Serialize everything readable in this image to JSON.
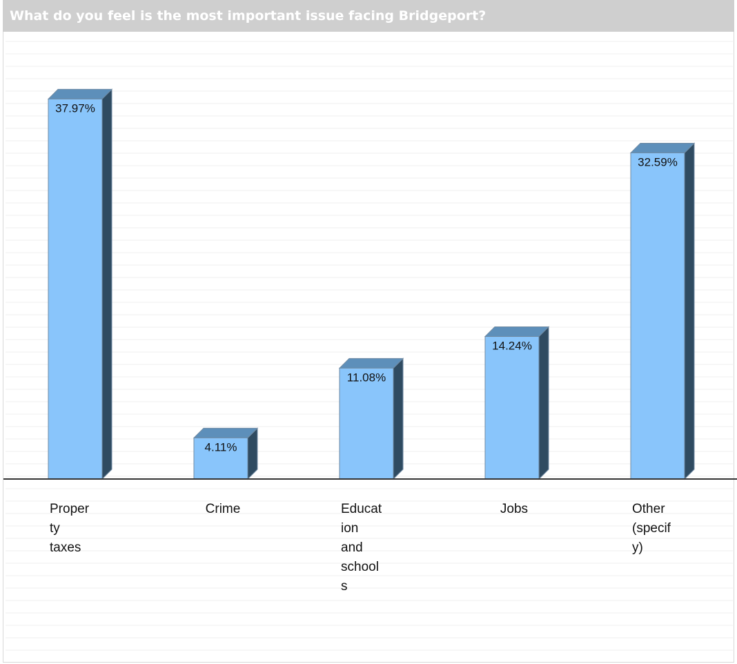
{
  "title": "What do you feel is the most important issue facing Bridgeport?",
  "colors": {
    "title_bar": "#cfcfcf",
    "bar_front": "#89c5fb",
    "bar_top": "#5d8fba",
    "bar_side": "#2f4b61",
    "bar_outline": "#6f8aa3",
    "baseline": "#333333",
    "grid": "#efefef"
  },
  "chart_data": {
    "type": "bar",
    "style": "3d",
    "title": "What do you feel is the most important issue facing Bridgeport?",
    "xlabel": "",
    "ylabel": "",
    "ylim": [
      0,
      40
    ],
    "grid": true,
    "legend": "none",
    "categories": [
      "Property taxes",
      "Crime",
      "Education and schools",
      "Jobs",
      "Other (specify)"
    ],
    "category_label_lines": [
      [
        "Proper",
        "ty",
        "taxes"
      ],
      [
        "Crime"
      ],
      [
        "Educat",
        "ion",
        "and",
        "school",
        "s"
      ],
      [
        "Jobs"
      ],
      [
        "Other",
        "(specif",
        "y)"
      ]
    ],
    "values": [
      37.97,
      4.11,
      11.08,
      14.24,
      32.59
    ],
    "value_labels": [
      "37.97%",
      "4.11%",
      "11.08%",
      "14.24%",
      "32.59%"
    ]
  }
}
